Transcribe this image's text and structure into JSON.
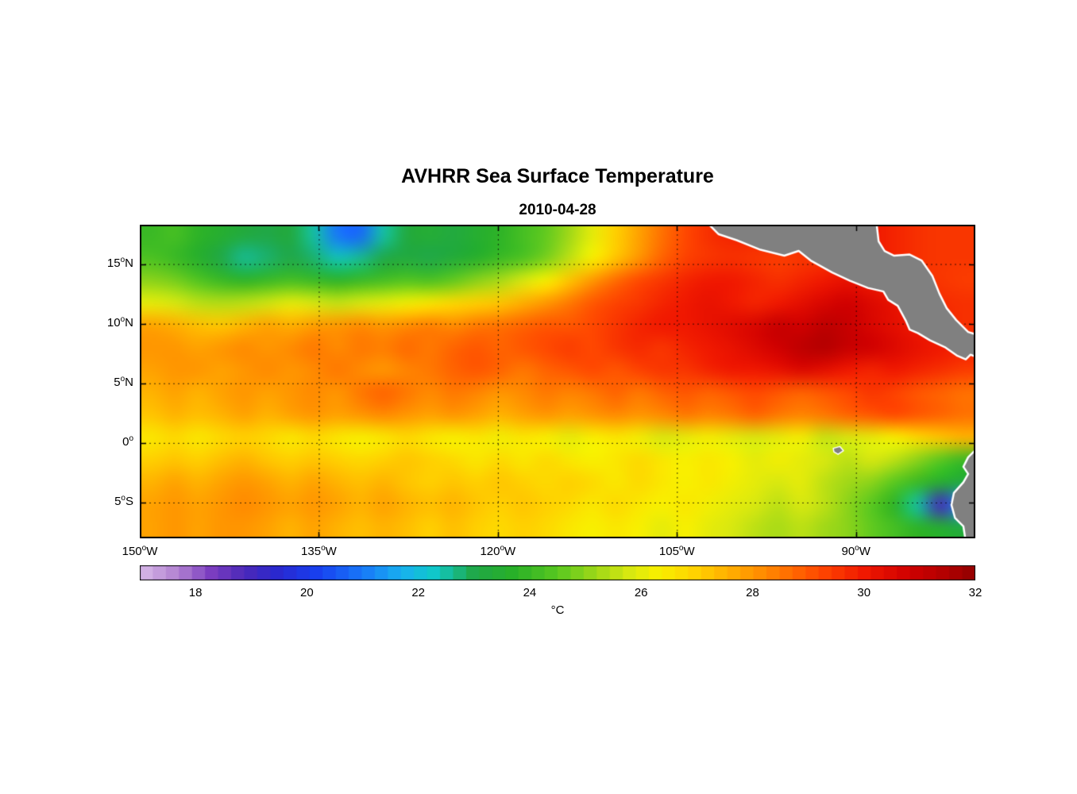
{
  "chart_data": {
    "type": "heatmap",
    "title": "AVHRR Sea Surface Temperature",
    "subtitle": "2010-04-28",
    "deg_symbol": "o",
    "lon_range": [
      -150,
      -80
    ],
    "lat_range": [
      -8,
      18.3
    ],
    "xticks": [
      {
        "value": "150",
        "hemi": "W",
        "lon": -150
      },
      {
        "value": "135",
        "hemi": "W",
        "lon": -135
      },
      {
        "value": "120",
        "hemi": "W",
        "lon": -120
      },
      {
        "value": "105",
        "hemi": "W",
        "lon": -105
      },
      {
        "value": "90",
        "hemi": "W",
        "lon": -90
      }
    ],
    "yticks": [
      {
        "value": "15",
        "hemi": "N",
        "lat": 15
      },
      {
        "value": "10",
        "hemi": "N",
        "lat": 10
      },
      {
        "value": "5",
        "hemi": "N",
        "lat": 5
      },
      {
        "value": "0",
        "hemi": "",
        "lat": 0
      },
      {
        "value": "5",
        "hemi": "S",
        "lat": -5
      }
    ],
    "grid_lines": {
      "lons": [
        -135,
        -120,
        -105,
        -90
      ],
      "lats": [
        15,
        10,
        5,
        0,
        -5
      ]
    },
    "colorbar": {
      "min": 17,
      "max": 32,
      "ticks": [
        18,
        20,
        22,
        24,
        26,
        28,
        30,
        32
      ],
      "label": "°C",
      "segments": 64,
      "stops": [
        [
          17.0,
          "#d8b8e8"
        ],
        [
          17.7,
          "#b080d0"
        ],
        [
          18.3,
          "#7a3cc0"
        ],
        [
          18.9,
          "#4a28b8"
        ],
        [
          19.5,
          "#2828d0"
        ],
        [
          20.2,
          "#1840f0"
        ],
        [
          21.0,
          "#1878f8"
        ],
        [
          21.7,
          "#18b0f0"
        ],
        [
          22.3,
          "#10c8c8"
        ],
        [
          23.0,
          "#20a848"
        ],
        [
          23.7,
          "#28b028"
        ],
        [
          24.5,
          "#58c820"
        ],
        [
          25.2,
          "#a0d818"
        ],
        [
          25.8,
          "#d8e810"
        ],
        [
          26.3,
          "#f8f000"
        ],
        [
          27.0,
          "#ffd000"
        ],
        [
          27.7,
          "#ffa800"
        ],
        [
          28.5,
          "#ff7800"
        ],
        [
          29.2,
          "#ff4800"
        ],
        [
          30.0,
          "#f01800"
        ],
        [
          30.8,
          "#d00000"
        ],
        [
          31.5,
          "#b00000"
        ],
        [
          32.0,
          "#900000"
        ]
      ]
    },
    "land_color": "#808080",
    "coast_color": "#ffffff",
    "sst_grid": {
      "lons": [
        -150,
        -148,
        -146,
        -144,
        -142,
        -140,
        -138,
        -136,
        -134,
        -132,
        -130,
        -128,
        -126,
        -124,
        -122,
        -120,
        -118,
        -116,
        -114,
        -112,
        -110,
        -108,
        -106,
        -104,
        -102,
        -100,
        -98,
        -96,
        -94,
        -92,
        -90,
        -88,
        -86,
        -84,
        -82,
        -80
      ],
      "lats": [
        18.3,
        16.3,
        14.3,
        12.3,
        10.3,
        8.3,
        6.3,
        4.3,
        2.3,
        0.3,
        -1.7,
        -3.7,
        -5.7,
        -8.0
      ],
      "values": [
        [
          24.0,
          24.2,
          23.8,
          23.5,
          23.2,
          23.0,
          23.2,
          22.5,
          21.0,
          20.8,
          22.5,
          23.2,
          23.4,
          23.2,
          23.5,
          23.8,
          24.2,
          24.6,
          25.2,
          26.0,
          27.0,
          27.8,
          28.6,
          29.2,
          29.6,
          29.8,
          29.8,
          29.8,
          29.8,
          29.8,
          30.0,
          30.0,
          29.8,
          29.6,
          29.5,
          29.5
        ],
        [
          24.3,
          24.0,
          23.6,
          23.0,
          22.6,
          22.8,
          23.0,
          22.8,
          22.4,
          22.6,
          23.0,
          23.2,
          23.0,
          23.3,
          23.6,
          24.0,
          24.3,
          24.8,
          25.5,
          26.3,
          27.2,
          28.0,
          28.8,
          29.3,
          29.5,
          29.6,
          29.5,
          29.4,
          29.5,
          29.6,
          29.8,
          30.0,
          29.8,
          29.6,
          29.5,
          29.5
        ],
        [
          25.0,
          24.8,
          24.4,
          24.0,
          23.8,
          24.0,
          24.2,
          24.0,
          23.8,
          24.0,
          24.2,
          24.4,
          24.3,
          24.6,
          25.0,
          25.3,
          25.8,
          26.3,
          27.2,
          28.0,
          28.7,
          29.2,
          29.5,
          29.8,
          30.0,
          30.0,
          29.8,
          29.6,
          29.8,
          30.0,
          30.2,
          30.0,
          29.8,
          29.6,
          29.5,
          29.4
        ],
        [
          26.0,
          25.8,
          25.5,
          25.4,
          25.5,
          25.7,
          26.0,
          25.8,
          25.6,
          25.8,
          26.0,
          26.2,
          26.5,
          26.8,
          27.0,
          27.2,
          27.6,
          28.0,
          28.5,
          29.0,
          29.3,
          29.5,
          29.8,
          30.0,
          30.2,
          30.0,
          29.8,
          30.0,
          30.3,
          30.6,
          30.8,
          30.5,
          30.2,
          29.9,
          29.7,
          29.6
        ],
        [
          27.8,
          27.6,
          27.3,
          27.2,
          27.5,
          27.8,
          27.6,
          27.9,
          28.0,
          28.2,
          28.0,
          28.2,
          28.4,
          28.2,
          28.5,
          28.6,
          28.8,
          29.0,
          29.0,
          29.2,
          29.5,
          29.8,
          30.0,
          30.0,
          30.2,
          30.4,
          30.6,
          31.0,
          30.8,
          31.2,
          31.0,
          30.6,
          30.3,
          30.0,
          29.8,
          29.6
        ],
        [
          28.0,
          28.0,
          27.8,
          28.0,
          28.2,
          28.0,
          28.2,
          28.5,
          28.2,
          28.5,
          28.4,
          28.7,
          28.5,
          28.8,
          29.0,
          28.8,
          29.0,
          29.2,
          29.4,
          29.2,
          29.5,
          29.7,
          29.5,
          29.8,
          30.0,
          30.2,
          30.5,
          30.8,
          31.2,
          31.4,
          31.0,
          30.8,
          30.5,
          30.2,
          30.0,
          29.8
        ],
        [
          27.8,
          28.0,
          28.0,
          27.8,
          28.0,
          28.2,
          28.0,
          28.2,
          28.5,
          28.2,
          28.0,
          28.3,
          28.5,
          28.8,
          29.0,
          28.8,
          28.5,
          28.8,
          29.0,
          29.2,
          29.0,
          29.3,
          29.5,
          29.5,
          29.8,
          30.0,
          30.0,
          30.2,
          30.5,
          30.3,
          30.0,
          29.8,
          30.0,
          29.8,
          29.6,
          29.4
        ],
        [
          27.5,
          27.8,
          27.5,
          27.8,
          28.0,
          27.8,
          28.0,
          28.2,
          28.0,
          28.5,
          28.8,
          28.5,
          28.2,
          28.5,
          28.3,
          28.0,
          28.2,
          28.5,
          28.3,
          28.5,
          28.8,
          28.5,
          28.8,
          29.0,
          28.8,
          29.0,
          29.2,
          29.0,
          28.8,
          29.0,
          29.2,
          29.5,
          29.3,
          29.0,
          28.8,
          28.6
        ],
        [
          27.2,
          27.5,
          27.3,
          27.5,
          27.8,
          27.5,
          27.8,
          28.0,
          27.8,
          28.0,
          28.2,
          28.0,
          27.8,
          28.0,
          27.8,
          27.5,
          27.8,
          28.0,
          27.8,
          28.0,
          28.2,
          28.0,
          28.2,
          28.5,
          28.3,
          28.5,
          28.8,
          28.5,
          28.3,
          28.5,
          28.8,
          29.0,
          29.2,
          29.0,
          28.8,
          28.6
        ],
        [
          26.5,
          26.8,
          26.5,
          26.8,
          27.0,
          26.8,
          26.5,
          26.8,
          26.5,
          26.3,
          26.5,
          26.8,
          26.5,
          26.3,
          26.5,
          26.2,
          26.5,
          26.3,
          26.0,
          26.3,
          26.5,
          26.2,
          25.8,
          26.0,
          26.2,
          26.0,
          25.8,
          26.0,
          26.2,
          25.6,
          25.8,
          26.0,
          26.3,
          26.8,
          27.2,
          27.5
        ],
        [
          27.0,
          27.2,
          27.0,
          27.3,
          27.5,
          27.2,
          27.0,
          27.2,
          27.0,
          26.8,
          27.0,
          27.2,
          27.0,
          26.8,
          26.5,
          26.8,
          26.5,
          26.8,
          26.5,
          26.3,
          26.5,
          26.8,
          26.5,
          26.3,
          26.5,
          26.3,
          26.0,
          26.2,
          26.0,
          25.8,
          25.5,
          25.8,
          25.5,
          25.0,
          24.5,
          24.0
        ],
        [
          27.5,
          27.8,
          27.5,
          27.8,
          28.0,
          27.8,
          27.5,
          27.8,
          27.5,
          27.3,
          27.5,
          27.2,
          27.0,
          27.2,
          27.0,
          27.2,
          27.0,
          26.8,
          27.0,
          26.8,
          26.5,
          26.8,
          26.5,
          26.3,
          26.5,
          26.2,
          26.0,
          25.8,
          26.0,
          25.5,
          25.2,
          25.0,
          24.5,
          24.0,
          23.5,
          23.2
        ],
        [
          27.8,
          28.0,
          27.8,
          28.0,
          28.2,
          28.0,
          27.8,
          28.0,
          27.8,
          27.5,
          27.8,
          27.5,
          27.3,
          27.5,
          27.2,
          27.0,
          27.2,
          27.0,
          26.8,
          26.5,
          26.8,
          26.5,
          26.3,
          26.5,
          26.2,
          26.0,
          25.8,
          25.5,
          25.8,
          25.5,
          25.0,
          24.5,
          23.8,
          22.5,
          19.0,
          21.5
        ],
        [
          27.8,
          28.0,
          27.8,
          28.0,
          28.0,
          27.8,
          27.5,
          27.8,
          27.5,
          27.3,
          27.5,
          27.3,
          27.0,
          27.3,
          27.0,
          26.8,
          27.0,
          26.8,
          26.5,
          26.3,
          26.5,
          26.3,
          26.0,
          26.3,
          26.0,
          25.8,
          25.5,
          25.3,
          25.5,
          25.2,
          25.0,
          24.6,
          24.2,
          23.8,
          23.5,
          23.2
        ]
      ]
    },
    "land_polygons": {
      "central_america": [
        [
          -102.6,
          18.6
        ],
        [
          -101.5,
          17.5
        ],
        [
          -100.0,
          17.0
        ],
        [
          -98.0,
          16.2
        ],
        [
          -96.0,
          15.7
        ],
        [
          -94.8,
          16.1
        ],
        [
          -93.8,
          15.3
        ],
        [
          -92.0,
          14.3
        ],
        [
          -90.5,
          13.6
        ],
        [
          -89.0,
          13.0
        ],
        [
          -87.7,
          12.7
        ],
        [
          -87.3,
          12.0
        ],
        [
          -86.5,
          11.5
        ],
        [
          -85.8,
          10.2
        ],
        [
          -85.5,
          9.5
        ],
        [
          -84.8,
          9.2
        ],
        [
          -83.8,
          8.6
        ],
        [
          -82.5,
          8.0
        ],
        [
          -81.5,
          7.3
        ],
        [
          -80.8,
          7.0
        ],
        [
          -80.4,
          7.4
        ],
        [
          -79.6,
          7.1
        ],
        [
          -79.6,
          9.0
        ],
        [
          -80.6,
          9.3
        ],
        [
          -81.6,
          10.3
        ],
        [
          -82.4,
          11.3
        ],
        [
          -83.0,
          12.5
        ],
        [
          -83.6,
          14.0
        ],
        [
          -84.5,
          15.3
        ],
        [
          -85.5,
          15.8
        ],
        [
          -86.8,
          15.7
        ],
        [
          -87.6,
          16.1
        ],
        [
          -88.1,
          16.9
        ],
        [
          -88.3,
          18.6
        ]
      ],
      "south_america": [
        [
          -79.6,
          -0.4
        ],
        [
          -80.1,
          -0.7
        ],
        [
          -80.6,
          -1.2
        ],
        [
          -81.0,
          -2.0
        ],
        [
          -80.6,
          -2.6
        ],
        [
          -81.0,
          -3.3
        ],
        [
          -81.8,
          -4.2
        ],
        [
          -82.0,
          -5.2
        ],
        [
          -81.7,
          -6.3
        ],
        [
          -81.0,
          -7.0
        ],
        [
          -80.8,
          -8.3
        ],
        [
          -79.6,
          -8.3
        ]
      ],
      "galapagos": [
        [
          -91.9,
          -0.45
        ],
        [
          -91.35,
          -0.3
        ],
        [
          -91.05,
          -0.65
        ],
        [
          -91.5,
          -0.95
        ],
        [
          -91.85,
          -0.75
        ]
      ]
    }
  }
}
